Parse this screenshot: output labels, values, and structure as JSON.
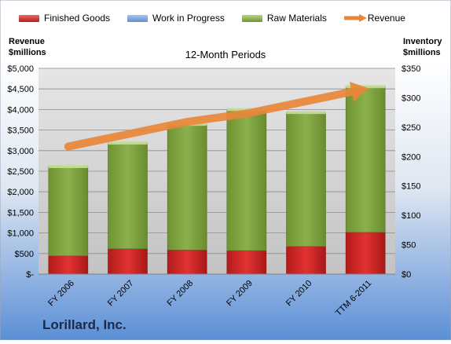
{
  "chart_data": {
    "type": "bar",
    "title": "",
    "subtitle": "12-Month Periods",
    "company": "Lorillard, Inc.",
    "categories": [
      "FY 2006",
      "FY 2007",
      "FY 2008",
      "FY 2009",
      "FY 2010",
      "TTM 6-2011"
    ],
    "left_axis": {
      "label_line1": "Revenue",
      "label_line2": "$millions",
      "ylim": [
        0,
        5000
      ],
      "ticks": [
        0,
        500,
        1000,
        1500,
        2000,
        2500,
        3000,
        3500,
        4000,
        4500,
        5000
      ],
      "tick_labels": [
        "$-",
        "$500",
        "$1,000",
        "$1,500",
        "$2,000",
        "$2,500",
        "$3,000",
        "$3,500",
        "$4,000",
        "$4,500",
        "$5,000"
      ]
    },
    "right_axis": {
      "label_line1": "Inventory",
      "label_line2": "$millions",
      "ylim": [
        0,
        350
      ],
      "ticks": [
        0,
        50,
        100,
        150,
        200,
        250,
        300,
        350
      ],
      "tick_labels": [
        "$0",
        "$50",
        "$100",
        "$150",
        "$200",
        "$250",
        "$300",
        "$350"
      ]
    },
    "series": [
      {
        "name": "Finished Goods",
        "axis": "right",
        "kind": "stacked-bar",
        "color": "#c62828",
        "values": [
          31,
          43,
          41,
          40,
          47,
          71
        ]
      },
      {
        "name": "Work in Progress",
        "axis": "right",
        "kind": "stacked-bar",
        "color": "#4f81bd",
        "values": [
          0,
          0,
          0,
          0,
          0,
          0
        ]
      },
      {
        "name": "Raw Materials",
        "axis": "right",
        "kind": "stacked-bar",
        "color": "#7f9f3f",
        "values": [
          152,
          180,
          214,
          240,
          228,
          248
        ]
      },
      {
        "name": "Revenue",
        "axis": "left",
        "kind": "arrow-line",
        "color": "#e8873a",
        "values": [
          3100,
          3400,
          3700,
          3900,
          4200,
          4500
        ]
      }
    ],
    "grid": true,
    "legend_position": "top"
  }
}
